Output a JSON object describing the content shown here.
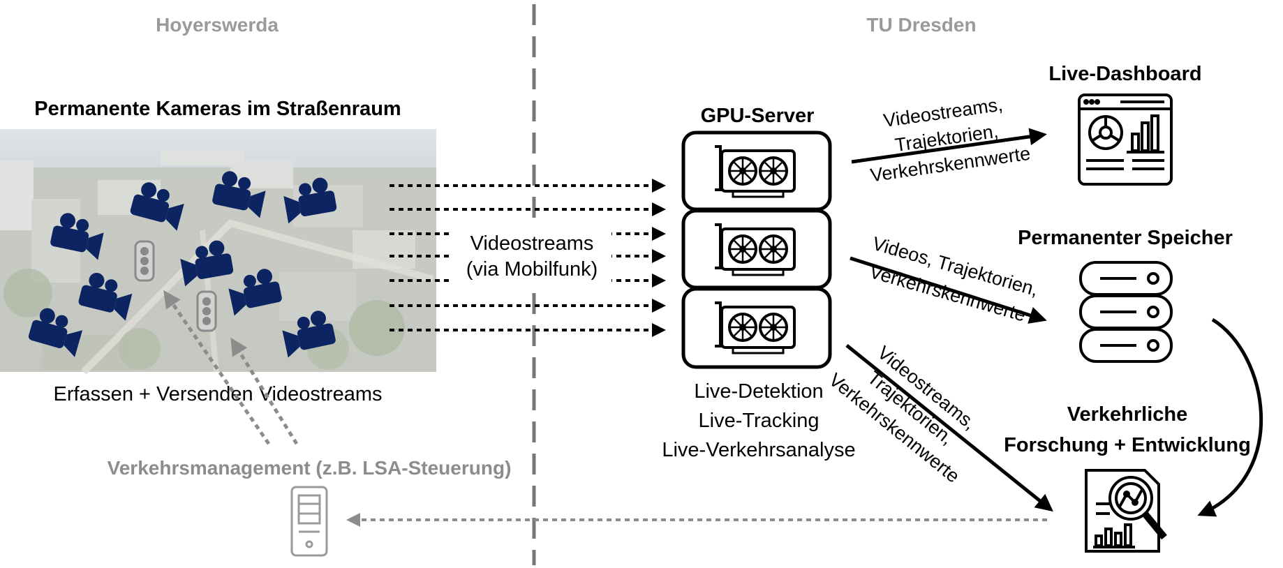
{
  "regions": {
    "left_title": "Hoyerswerda",
    "right_title": "TU Dresden"
  },
  "cameras": {
    "title": "Permanente Kameras im Straßenraum",
    "caption": "Erfassen + Versenden Videostreams"
  },
  "streams_link": {
    "line1": "Videostreams",
    "line2": "(via Mobilfunk)"
  },
  "gpu_server": {
    "title": "GPU-Server",
    "functions": [
      "Live-Detektion",
      "Live-Tracking",
      "Live-Verkehrsanalyse"
    ]
  },
  "dashboard": {
    "title": "Live-Dashboard",
    "edge_label": [
      "Videostreams,",
      "Trajektorien,",
      "Verkehrskennwerte"
    ]
  },
  "storage": {
    "title": "Permanenter Speicher",
    "edge_label": [
      "Videos, Trajektorien,",
      "Verkehrskennwerte"
    ]
  },
  "research": {
    "title_line1": "Verkehrliche",
    "title_line2": "Forschung + Entwicklung",
    "edge_label": [
      "Videostreams,",
      "Trajektorien,",
      "Verkehrskennwerte"
    ]
  },
  "traffic_management": {
    "label": "Verkehrsmanagement (z.B. LSA-Steuerung)"
  },
  "colors": {
    "camera": "#0c2461",
    "region_title": "#9a9a9a",
    "feedback": "#8c8c8c",
    "stroke": "#000000"
  }
}
